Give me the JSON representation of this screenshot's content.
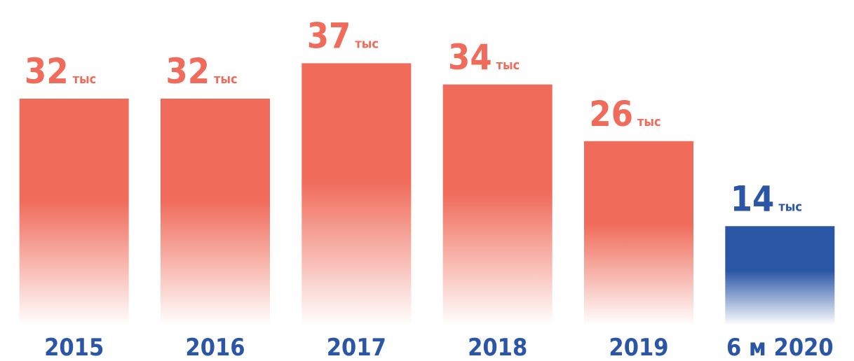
{
  "chart_data": {
    "type": "bar",
    "categories": [
      "2015",
      "2016",
      "2017",
      "2018",
      "2019",
      "6 м 2020"
    ],
    "values": [
      32,
      32,
      37,
      34,
      26,
      14
    ],
    "unit": "тыс",
    "colors": [
      "#f06b5a",
      "#f06b5a",
      "#f06b5a",
      "#f06b5a",
      "#f06b5a",
      "#2b56a6"
    ],
    "ylim": [
      0,
      40
    ]
  }
}
